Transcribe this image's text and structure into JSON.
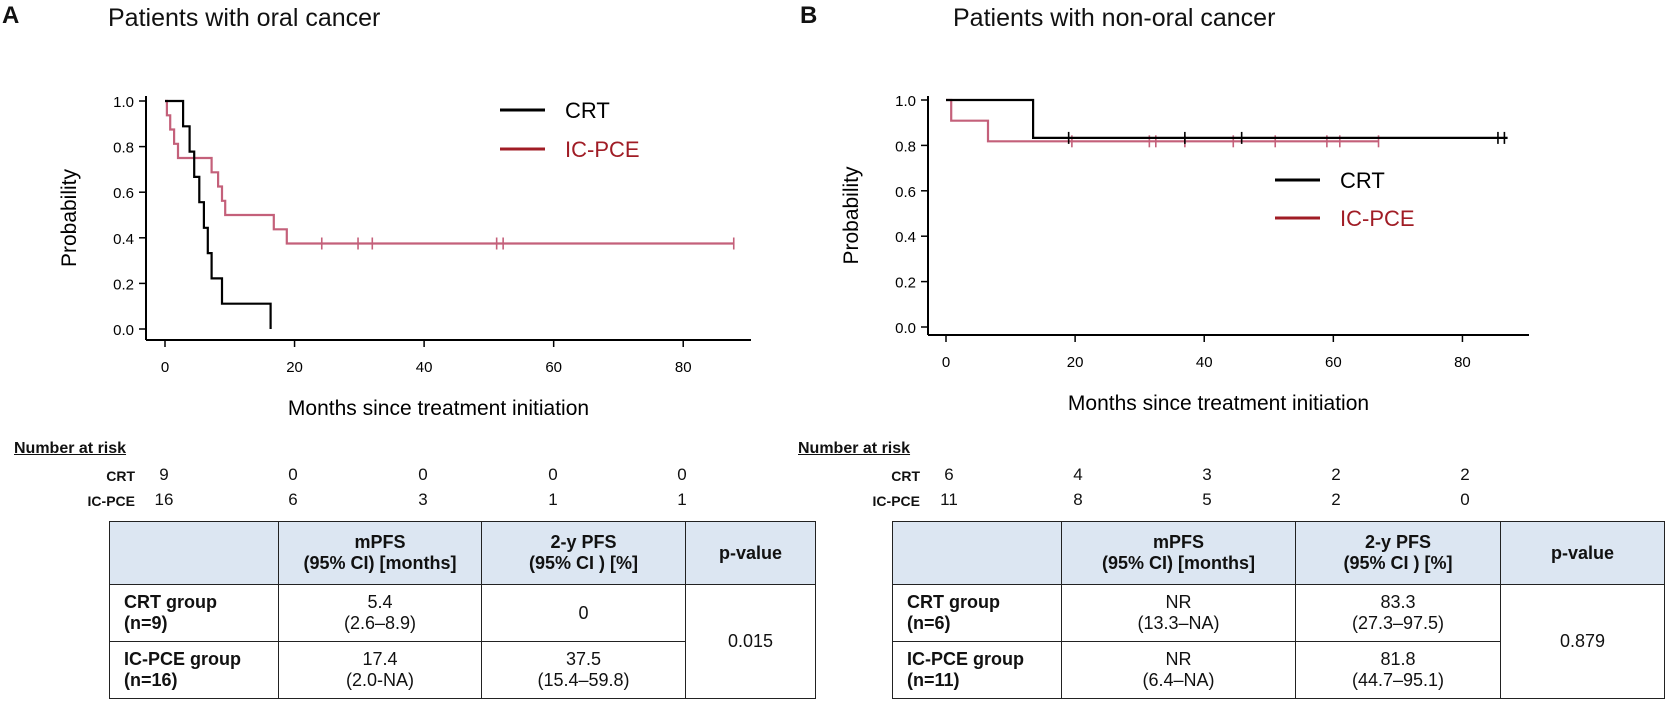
{
  "panels": [
    {
      "label": "A",
      "title": "Patients with oral cancer",
      "chart_data": {
        "type": "line",
        "subtype": "kaplan-meier",
        "xlabel": "Months since treatment initiation",
        "ylabel": "Probability",
        "xlim": [
          0,
          90
        ],
        "ylim": [
          0,
          1
        ],
        "xticks": [
          "0",
          "20",
          "40",
          "60",
          "80"
        ],
        "yticks": [
          "0.0",
          "0.2",
          "0.4",
          "0.6",
          "0.8",
          "1.0"
        ],
        "legend": [
          "CRT",
          "IC-PCE"
        ],
        "legend_position": "top-right",
        "series": [
          {
            "name": "CRT",
            "color": "#000000",
            "steps": [
              [
                0,
                1.0
              ],
              [
                2.8,
                0.889
              ],
              [
                3.8,
                0.778
              ],
              [
                4.5,
                0.667
              ],
              [
                5.3,
                0.556
              ],
              [
                6.0,
                0.444
              ],
              [
                6.6,
                0.333
              ],
              [
                7.2,
                0.222
              ],
              [
                8.8,
                0.111
              ],
              [
                16.3,
                0.0
              ]
            ],
            "end": 16.3,
            "censors": []
          },
          {
            "name": "IC-PCE",
            "color": "#c4607a",
            "steps": [
              [
                0,
                1.0
              ],
              [
                0.3,
                0.9375
              ],
              [
                0.8,
                0.875
              ],
              [
                1.4,
                0.8125
              ],
              [
                2.0,
                0.75
              ],
              [
                7.2,
                0.6875
              ],
              [
                8.2,
                0.625
              ],
              [
                8.8,
                0.5625
              ],
              [
                9.3,
                0.5
              ],
              [
                16.8,
                0.4375
              ],
              [
                18.8,
                0.375
              ]
            ],
            "end": 87.8,
            "censors": [
              24.2,
              29.8,
              32.0,
              51.2,
              52.2,
              87.8
            ]
          }
        ]
      },
      "risk": {
        "title": "Number at risk",
        "rows": [
          {
            "label": "CRT",
            "values": [
              "9",
              "0",
              "0",
              "0",
              "0"
            ]
          },
          {
            "label": "IC-PCE",
            "values": [
              "16",
              "6",
              "3",
              "1",
              "1"
            ]
          }
        ]
      },
      "table": {
        "headers": [
          "",
          "mPFS",
          "(95% CI) [months]",
          "2-y PFS",
          "(95% CI ) [%]",
          "p-value"
        ],
        "rows": [
          {
            "group": "CRT group",
            "n": " (n=9)",
            "mpfs": "5.4",
            "mpfs_ci": "(2.6–8.9)",
            "pfs2": "0",
            "pfs2_ci": ""
          },
          {
            "group": "IC-PCE group",
            "n": "(n=16)",
            "mpfs": "17.4",
            "mpfs_ci": "(2.0-NA)",
            "pfs2": "37.5",
            "pfs2_ci": "(15.4–59.8)"
          }
        ],
        "p_value": "0.015"
      }
    },
    {
      "label": "B",
      "title": "Patients with non-oral cancer",
      "chart_data": {
        "type": "line",
        "subtype": "kaplan-meier",
        "xlabel": "Months since treatment initiation",
        "ylabel": "Probability",
        "xlim": [
          0,
          90
        ],
        "ylim": [
          0,
          1
        ],
        "xticks": [
          "0",
          "20",
          "40",
          "60",
          "80"
        ],
        "yticks": [
          "0.0",
          "0.2",
          "0.4",
          "0.6",
          "0.8",
          "1.0"
        ],
        "legend": [
          "CRT",
          "IC-PCE"
        ],
        "legend_position": "right",
        "series": [
          {
            "name": "CRT",
            "color": "#000000",
            "steps": [
              [
                0,
                1.0
              ],
              [
                13.5,
                0.833
              ]
            ],
            "end": 87.0,
            "censors": [
              19.0,
              37.0,
              45.8,
              85.5,
              86.5
            ]
          },
          {
            "name": "IC-PCE",
            "color": "#c4607a",
            "steps": [
              [
                0,
                1.0
              ],
              [
                0.8,
                0.909
              ],
              [
                6.5,
                0.818
              ]
            ],
            "end": 67.0,
            "censors": [
              19.5,
              31.5,
              32.5,
              37.0,
              44.5,
              51.0,
              59.0,
              61.0,
              67.0
            ]
          }
        ]
      },
      "risk": {
        "title": "Number at risk",
        "rows": [
          {
            "label": "CRT",
            "values": [
              "6",
              "4",
              "3",
              "2",
              "2"
            ]
          },
          {
            "label": "IC-PCE",
            "values": [
              "11",
              "8",
              "5",
              "2",
              "0"
            ]
          }
        ]
      },
      "table": {
        "headers": [
          "",
          "mPFS",
          "(95% CI) [months]",
          "2-y PFS",
          "(95% CI ) [%]",
          "p-value"
        ],
        "rows": [
          {
            "group": "CRT group",
            "n": "(n=6)",
            "mpfs": "NR",
            "mpfs_ci": "(13.3–NA)",
            "pfs2": "83.3",
            "pfs2_ci": "(27.3–97.5)"
          },
          {
            "group": "IC-PCE group",
            "n": "(n=11)",
            "mpfs": "NR",
            "mpfs_ci": "(6.4–NA)",
            "pfs2": "81.8",
            "pfs2_ci": "(44.7–95.1)"
          }
        ],
        "p_value": "0.879"
      }
    }
  ]
}
